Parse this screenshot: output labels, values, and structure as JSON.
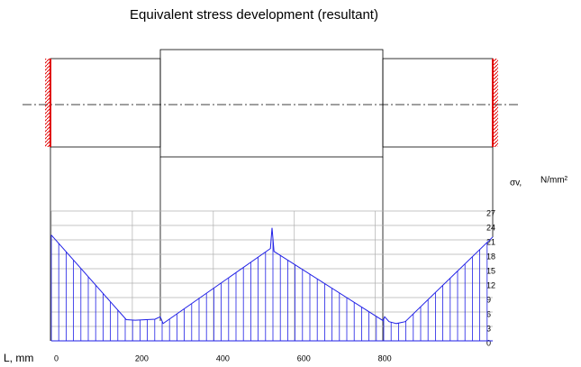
{
  "chart_data": {
    "type": "line",
    "title": "Equivalent stress development (resultant)",
    "x_label": "L, mm",
    "y_label": "σv,",
    "y_unit": "N/mm²",
    "x": [
      0,
      185,
      207,
      256,
      269,
      276,
      541,
      545,
      550,
      819,
      823,
      834,
      852,
      874,
      1090
    ],
    "series": [
      {
        "color": "#1f1fe6",
        "values": [
          22,
          4.4,
          4.3,
          4.5,
          5.0,
          3.6,
          19.2,
          23.5,
          18.6,
          4.2,
          5.0,
          4.0,
          3.6,
          4.0,
          21.6
        ]
      }
    ],
    "xlim": [
      0,
      1090
    ],
    "ylim": [
      0,
      27
    ],
    "xticks": [
      0,
      200,
      400,
      600,
      800
    ],
    "yticks": [
      0,
      3,
      6,
      9,
      12,
      15,
      18,
      21,
      24,
      27
    ],
    "grid": true
  }
}
